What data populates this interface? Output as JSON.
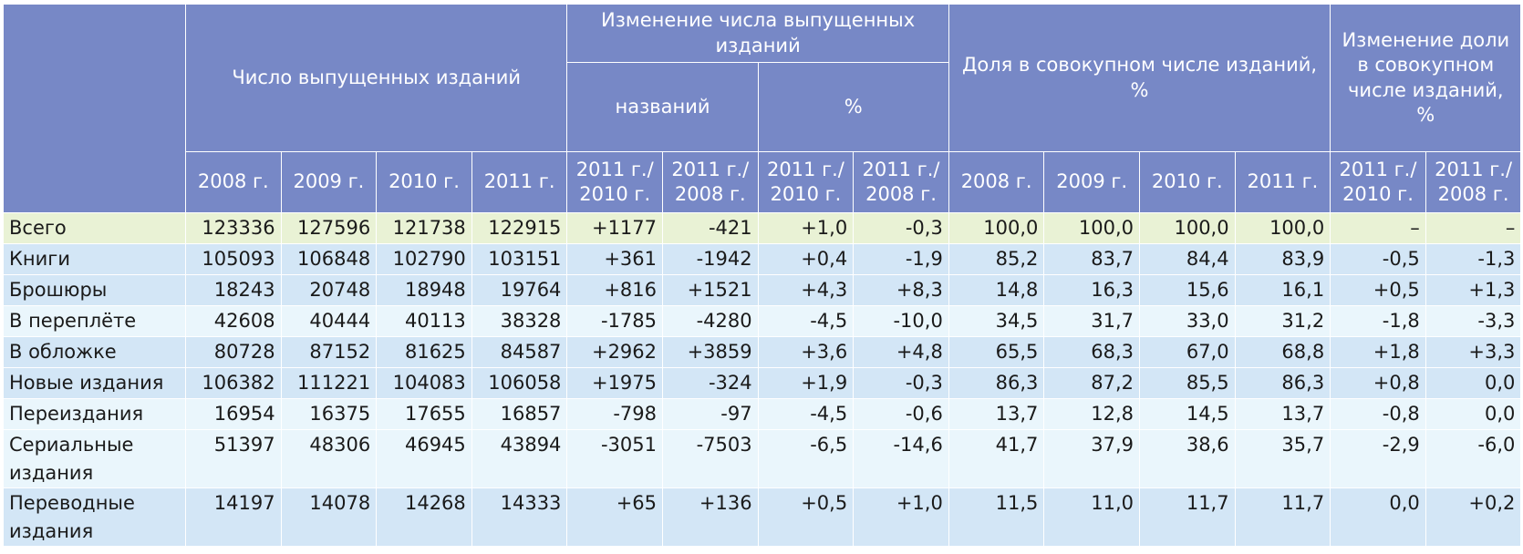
{
  "header": {
    "groups": [
      "Число выпущенных изданий",
      "Изменение числа выпущенных изданий",
      "Доля в совокупном числе изданий, %",
      "Изменение доли в совокупном числе изданий, %"
    ],
    "subgroups": [
      "названий",
      "%"
    ],
    "columns": [
      "2008 г.",
      "2009 г.",
      "2010 г.",
      "2011 г.",
      "2011 г./ 2010 г.",
      "2011 г./ 2008 г.",
      "2011 г./ 2010 г.",
      "2011 г./ 2008 г.",
      "2008 г.",
      "2009 г.",
      "2010 г.",
      "2011 г.",
      "2011 г./ 2010 г.",
      "2011 г./ 2008 г."
    ]
  },
  "rows": [
    {
      "label": "Всего",
      "cells": [
        "123336",
        "127596",
        "121738",
        "122915",
        "+1177",
        "-421",
        "+1,0",
        "-0,3",
        "100,0",
        "100,0",
        "100,0",
        "100,0",
        "–",
        "–"
      ]
    },
    {
      "label": "Книги",
      "cells": [
        "105093",
        "106848",
        "102790",
        "103151",
        "+361",
        "-1942",
        "+0,4",
        "-1,9",
        "85,2",
        "83,7",
        "84,4",
        "83,9",
        "-0,5",
        "-1,3"
      ]
    },
    {
      "label": "Брошюры",
      "cells": [
        "18243",
        "20748",
        "18948",
        "19764",
        "+816",
        "+1521",
        "+4,3",
        "+8,3",
        "14,8",
        "16,3",
        "15,6",
        "16,1",
        "+0,5",
        "+1,3"
      ]
    },
    {
      "label": "В переплёте",
      "cells": [
        "42608",
        "40444",
        "40113",
        "38328",
        "-1785",
        "-4280",
        "-4,5",
        "-10,0",
        "34,5",
        "31,7",
        "33,0",
        "31,2",
        "-1,8",
        "-3,3"
      ]
    },
    {
      "label": "В обложке",
      "cells": [
        "80728",
        "87152",
        "81625",
        "84587",
        "+2962",
        "+3859",
        "+3,6",
        "+4,8",
        "65,5",
        "68,3",
        "67,0",
        "68,8",
        "+1,8",
        "+3,3"
      ]
    },
    {
      "label": "Новые издания",
      "cells": [
        "106382",
        "111221",
        "104083",
        "106058",
        "+1975",
        "-324",
        "+1,9",
        "-0,3",
        "86,3",
        "87,2",
        "85,5",
        "86,3",
        "+0,8",
        "0,0"
      ]
    },
    {
      "label": "Переиздания",
      "cells": [
        "16954",
        "16375",
        "17655",
        "16857",
        "-798",
        "-97",
        "-4,5",
        "-0,6",
        "13,7",
        "12,8",
        "14,5",
        "13,7",
        "-0,8",
        "0,0"
      ]
    },
    {
      "label": "Сериальные издания",
      "cells": [
        "51397",
        "48306",
        "46945",
        "43894",
        "-3051",
        "-7503",
        "-6,5",
        "-14,6",
        "41,7",
        "37,9",
        "38,6",
        "35,7",
        "-2,9",
        "-6,0"
      ]
    },
    {
      "label": "Переводные издания",
      "cells": [
        "14197",
        "14078",
        "14268",
        "14333",
        "+65",
        "+136",
        "+0,5",
        "+1,0",
        "11,5",
        "11,0",
        "11,7",
        "11,7",
        "0,0",
        "+0,2"
      ]
    }
  ]
}
